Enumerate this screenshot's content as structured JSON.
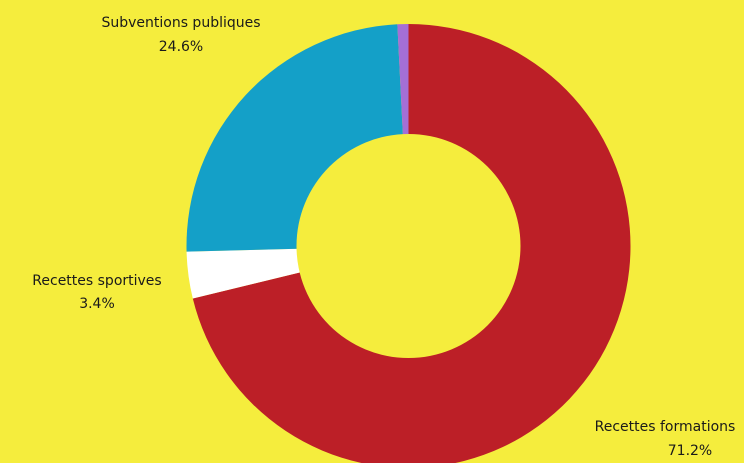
{
  "background": "#f5ed3d",
  "chart_data": {
    "type": "pie",
    "variant": "donut",
    "title": "",
    "slices": [
      {
        "label": "Recettes formations",
        "value": 71.2,
        "display": "71.2%",
        "color": "#bc1f27"
      },
      {
        "label": "Recettes sportives",
        "value": 3.4,
        "display": "3.4%",
        "color": "#ffffff"
      },
      {
        "label": "Subventions publiques",
        "value": 24.6,
        "display": "24.6%",
        "color": "#14a0c8"
      },
      {
        "label": "",
        "value": 0.8,
        "display": "",
        "color": "#a46fd6"
      }
    ]
  }
}
